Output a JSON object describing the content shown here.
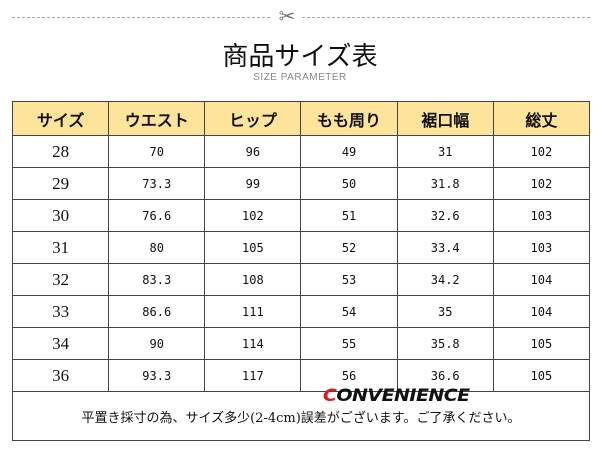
{
  "header": {
    "title": "商品サイズ表",
    "subtitle": "SIZE PARAMETER",
    "scissors_icon": "✂"
  },
  "table": {
    "columns": [
      "サイズ",
      "ウエスト",
      "ヒップ",
      "もも周り",
      "裾口幅",
      "総丈"
    ],
    "rows": [
      [
        "28",
        "70",
        "96",
        "49",
        "31",
        "102"
      ],
      [
        "29",
        "73.3",
        "99",
        "50",
        "31.8",
        "102"
      ],
      [
        "30",
        "76.6",
        "102",
        "51",
        "32.6",
        "103"
      ],
      [
        "31",
        "80",
        "105",
        "52",
        "33.4",
        "103"
      ],
      [
        "32",
        "83.3",
        "108",
        "53",
        "34.2",
        "104"
      ],
      [
        "33",
        "86.6",
        "111",
        "54",
        "35",
        "104"
      ],
      [
        "34",
        "90",
        "114",
        "55",
        "35.8",
        "105"
      ],
      [
        "36",
        "93.3",
        "117",
        "56",
        "36.6",
        "105"
      ]
    ],
    "header_bg": "#fde49a",
    "note": "平置き採寸の為、サイズ多少(2-4cm)誤差がございます。ご了承ください。"
  },
  "logo": {
    "first": "C",
    "rest": "ONVENIENCE",
    "accent": "#e8141e"
  }
}
